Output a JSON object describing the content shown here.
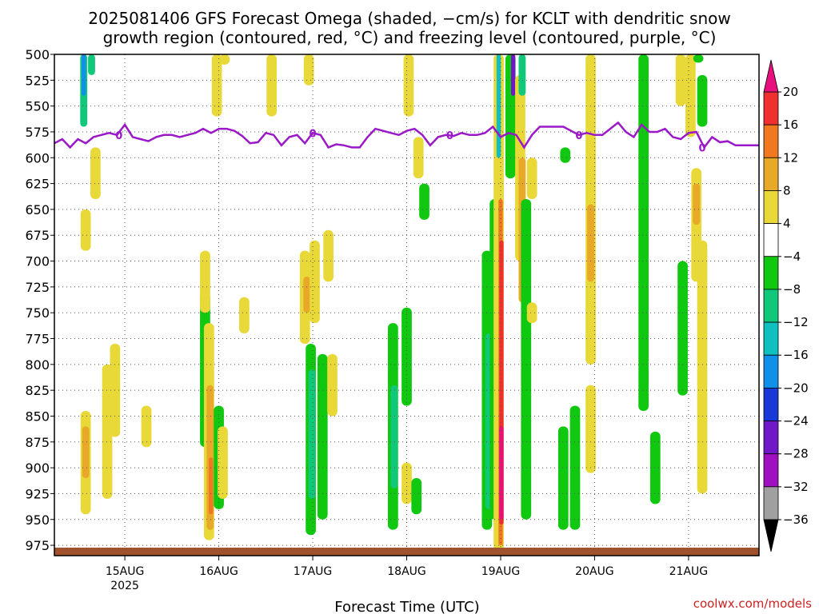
{
  "title_line1": "2025081406 GFS Forecast Omega (shaded, −cm/s) for KCLT with dendritic snow",
  "title_line2": "growth region (contoured, red, °C) and freezing level (contoured, purple, °C)",
  "xlabel": "Forecast Time (UTC)",
  "credit": "coolwx.com/models",
  "credit_color": "#cc2222",
  "chart_data": {
    "type": "heatmap",
    "title": "2025081406 GFS Forecast Omega (shaded, −cm/s) for KCLT with dendritic snow growth region (contoured, red, °C) and freezing level (contoured, purple, °C)",
    "xlabel": "Forecast Time (UTC)",
    "ylabel": "",
    "y_axis": {
      "reversed": true,
      "ylim": [
        500,
        985
      ],
      "ticks": [
        500,
        525,
        550,
        575,
        600,
        625,
        650,
        675,
        700,
        725,
        750,
        775,
        800,
        825,
        850,
        875,
        900,
        925,
        950,
        975
      ]
    },
    "x_axis": {
      "range_hours": [
        0,
        180
      ],
      "ticks": [
        {
          "hour": 18,
          "label": "15AUG",
          "sublabel": "2025"
        },
        {
          "hour": 42,
          "label": "16AUG",
          "sublabel": ""
        },
        {
          "hour": 66,
          "label": "17AUG",
          "sublabel": ""
        },
        {
          "hour": 90,
          "label": "18AUG",
          "sublabel": ""
        },
        {
          "hour": 114,
          "label": "19AUG",
          "sublabel": ""
        },
        {
          "hour": 138,
          "label": "20AUG",
          "sublabel": ""
        },
        {
          "hour": 162,
          "label": "21AUG",
          "sublabel": ""
        }
      ]
    },
    "grid": true,
    "colorbar": {
      "labels": [
        "20",
        "16",
        "12",
        "8",
        "4",
        "−4",
        "−8",
        "−12",
        "−16",
        "−20",
        "−24",
        "−28",
        "−32",
        "−36"
      ],
      "colors": [
        "#e8107e",
        "#f03030",
        "#f07820",
        "#e8a828",
        "#e8d838",
        "#ffffff",
        "#10c810",
        "#10c87a",
        "#10c0c0",
        "#1090e8",
        "#1838d8",
        "#7018c8",
        "#a010c0",
        "#a0a0a0"
      ]
    },
    "freezing_level": {
      "contour_label": "0",
      "color": "#9a18c8",
      "hours": [
        0,
        2,
        4,
        6,
        8,
        10,
        12,
        14,
        16,
        18,
        20,
        22,
        24,
        26,
        28,
        30,
        32,
        34,
        36,
        38,
        40,
        42,
        44,
        46,
        48,
        50,
        52,
        54,
        56,
        58,
        60,
        62,
        64,
        66,
        68,
        70,
        72,
        74,
        76,
        78,
        80,
        82,
        84,
        86,
        88,
        90,
        92,
        94,
        96,
        98,
        100,
        102,
        104,
        106,
        108,
        110,
        112,
        114,
        116,
        118,
        120,
        122,
        124,
        126,
        128,
        130,
        132,
        134,
        136,
        138,
        140,
        142,
        144,
        146,
        148,
        150,
        152,
        154,
        156,
        158,
        160,
        162,
        164,
        166,
        168,
        170,
        172,
        174,
        176,
        178,
        180
      ],
      "pressure": [
        586,
        582,
        590,
        582,
        586,
        580,
        578,
        576,
        578,
        568,
        580,
        582,
        584,
        580,
        578,
        578,
        580,
        578,
        576,
        572,
        576,
        572,
        572,
        574,
        579,
        586,
        585,
        576,
        578,
        588,
        580,
        578,
        586,
        576,
        578,
        590,
        587,
        588,
        590,
        590,
        580,
        572,
        574,
        576,
        578,
        574,
        572,
        578,
        588,
        580,
        578,
        579,
        576,
        578,
        578,
        576,
        570,
        580,
        576,
        578,
        590,
        578,
        570,
        570,
        570,
        570,
        574,
        578,
        576,
        578,
        578,
        572,
        566,
        575,
        580,
        568,
        575,
        575,
        572,
        580,
        582,
        576,
        575,
        590,
        580,
        585,
        584,
        588,
        588,
        588,
        588
      ]
    },
    "omega_cells": [
      {
        "hour": 7.5,
        "p_top": 500,
        "p_bottom": 570,
        "value": -10
      },
      {
        "hour": 7.5,
        "p_top": 500,
        "p_bottom": 540,
        "value": -18
      },
      {
        "hour": 9.5,
        "p_top": 500,
        "p_bottom": 520,
        "value": -8
      },
      {
        "hour": 10.5,
        "p_top": 590,
        "p_bottom": 640,
        "value": 5
      },
      {
        "hour": 8,
        "p_top": 650,
        "p_bottom": 690,
        "value": 5
      },
      {
        "hour": 8,
        "p_top": 845,
        "p_bottom": 945,
        "value": 6
      },
      {
        "hour": 8,
        "p_top": 860,
        "p_bottom": 910,
        "value": 9
      },
      {
        "hour": 15.5,
        "p_top": 780,
        "p_bottom": 870,
        "value": 5
      },
      {
        "hour": 13.5,
        "p_top": 800,
        "p_bottom": 930,
        "value": 5
      },
      {
        "hour": 23.5,
        "p_top": 840,
        "p_bottom": 880,
        "value": 5
      },
      {
        "hour": 38.5,
        "p_top": 730,
        "p_bottom": 880,
        "value": -6
      },
      {
        "hour": 39.5,
        "p_top": 760,
        "p_bottom": 970,
        "value": 6
      },
      {
        "hour": 39.8,
        "p_top": 820,
        "p_bottom": 960,
        "value": 10
      },
      {
        "hour": 40,
        "p_top": 890,
        "p_bottom": 945,
        "value": 15
      },
      {
        "hour": 42,
        "p_top": 840,
        "p_bottom": 940,
        "value": -6
      },
      {
        "hour": 43,
        "p_top": 860,
        "p_bottom": 930,
        "value": 5
      },
      {
        "hour": 38.5,
        "p_top": 690,
        "p_bottom": 750,
        "value": 5
      },
      {
        "hour": 41.5,
        "p_top": 500,
        "p_bottom": 560,
        "value": 5
      },
      {
        "hour": 43.5,
        "p_top": 500,
        "p_bottom": 510,
        "value": 5
      },
      {
        "hour": 48.5,
        "p_top": 735,
        "p_bottom": 770,
        "value": 5
      },
      {
        "hour": 55.5,
        "p_top": 500,
        "p_bottom": 560,
        "value": 5
      },
      {
        "hour": 64,
        "p_top": 690,
        "p_bottom": 780,
        "value": 5
      },
      {
        "hour": 64.5,
        "p_top": 715,
        "p_bottom": 750,
        "value": 9
      },
      {
        "hour": 65.5,
        "p_top": 780,
        "p_bottom": 965,
        "value": -6
      },
      {
        "hour": 65.8,
        "p_top": 805,
        "p_bottom": 930,
        "value": -11
      },
      {
        "hour": 66.5,
        "p_top": 680,
        "p_bottom": 760,
        "value": 5
      },
      {
        "hour": 68.5,
        "p_top": 790,
        "p_bottom": 950,
        "value": -6
      },
      {
        "hour": 70,
        "p_top": 670,
        "p_bottom": 720,
        "value": 5
      },
      {
        "hour": 65,
        "p_top": 500,
        "p_bottom": 530,
        "value": 5
      },
      {
        "hour": 71,
        "p_top": 790,
        "p_bottom": 850,
        "value": 5
      },
      {
        "hour": 86.5,
        "p_top": 760,
        "p_bottom": 960,
        "value": -6
      },
      {
        "hour": 86.8,
        "p_top": 820,
        "p_bottom": 920,
        "value": -11
      },
      {
        "hour": 90,
        "p_top": 745,
        "p_bottom": 840,
        "value": -6
      },
      {
        "hour": 90.5,
        "p_top": 500,
        "p_bottom": 560,
        "value": 5
      },
      {
        "hour": 93,
        "p_top": 580,
        "p_bottom": 620,
        "value": 5
      },
      {
        "hour": 94.5,
        "p_top": 625,
        "p_bottom": 660,
        "value": -6
      },
      {
        "hour": 90,
        "p_top": 895,
        "p_bottom": 935,
        "value": 5
      },
      {
        "hour": 92.5,
        "p_top": 910,
        "p_bottom": 945,
        "value": -6
      },
      {
        "hour": 110.5,
        "p_top": 690,
        "p_bottom": 960,
        "value": -6
      },
      {
        "hour": 111,
        "p_top": 770,
        "p_bottom": 940,
        "value": -11
      },
      {
        "hour": 112.5,
        "p_top": 640,
        "p_bottom": 950,
        "value": -6
      },
      {
        "hour": 113.5,
        "p_top": 500,
        "p_bottom": 980,
        "value": 5
      },
      {
        "hour": 114,
        "p_top": 640,
        "p_bottom": 975,
        "value": 13
      },
      {
        "hour": 114.2,
        "p_top": 680,
        "p_bottom": 955,
        "value": 19
      },
      {
        "hour": 114.2,
        "p_top": 860,
        "p_bottom": 950,
        "value": 21
      },
      {
        "hour": 113.5,
        "p_top": 500,
        "p_bottom": 600,
        "value": -14
      },
      {
        "hour": 116.5,
        "p_top": 500,
        "p_bottom": 620,
        "value": -6
      },
      {
        "hour": 117.2,
        "p_top": 500,
        "p_bottom": 540,
        "value": -26
      },
      {
        "hour": 119,
        "p_top": 520,
        "p_bottom": 700,
        "value": 5
      },
      {
        "hour": 119.5,
        "p_top": 600,
        "p_bottom": 740,
        "value": 9
      },
      {
        "hour": 120.5,
        "p_top": 640,
        "p_bottom": 950,
        "value": -6
      },
      {
        "hour": 119.5,
        "p_top": 500,
        "p_bottom": 540,
        "value": -8
      },
      {
        "hour": 122,
        "p_top": 600,
        "p_bottom": 640,
        "value": 5
      },
      {
        "hour": 122,
        "p_top": 740,
        "p_bottom": 760,
        "value": 5
      },
      {
        "hour": 130,
        "p_top": 860,
        "p_bottom": 960,
        "value": -6
      },
      {
        "hour": 133,
        "p_top": 840,
        "p_bottom": 960,
        "value": -6
      },
      {
        "hour": 130.5,
        "p_top": 590,
        "p_bottom": 605,
        "value": -6
      },
      {
        "hour": 137,
        "p_top": 500,
        "p_bottom": 800,
        "value": 5
      },
      {
        "hour": 137,
        "p_top": 645,
        "p_bottom": 720,
        "value": 10
      },
      {
        "hour": 137,
        "p_top": 820,
        "p_bottom": 905,
        "value": 5
      },
      {
        "hour": 150.5,
        "p_top": 500,
        "p_bottom": 845,
        "value": -6
      },
      {
        "hour": 153.5,
        "p_top": 865,
        "p_bottom": 935,
        "value": -6
      },
      {
        "hour": 160.5,
        "p_top": 700,
        "p_bottom": 830,
        "value": -6
      },
      {
        "hour": 162.5,
        "p_top": 500,
        "p_bottom": 580,
        "value": 5
      },
      {
        "hour": 164,
        "p_top": 610,
        "p_bottom": 720,
        "value": 5
      },
      {
        "hour": 164,
        "p_top": 625,
        "p_bottom": 665,
        "value": 9
      },
      {
        "hour": 165.5,
        "p_top": 680,
        "p_bottom": 925,
        "value": 5
      },
      {
        "hour": 165.5,
        "p_top": 520,
        "p_bottom": 570,
        "value": -6
      },
      {
        "hour": 164.5,
        "p_top": 500,
        "p_bottom": 508,
        "value": -6
      },
      {
        "hour": 160,
        "p_top": 500,
        "p_bottom": 550,
        "value": 5
      }
    ]
  }
}
